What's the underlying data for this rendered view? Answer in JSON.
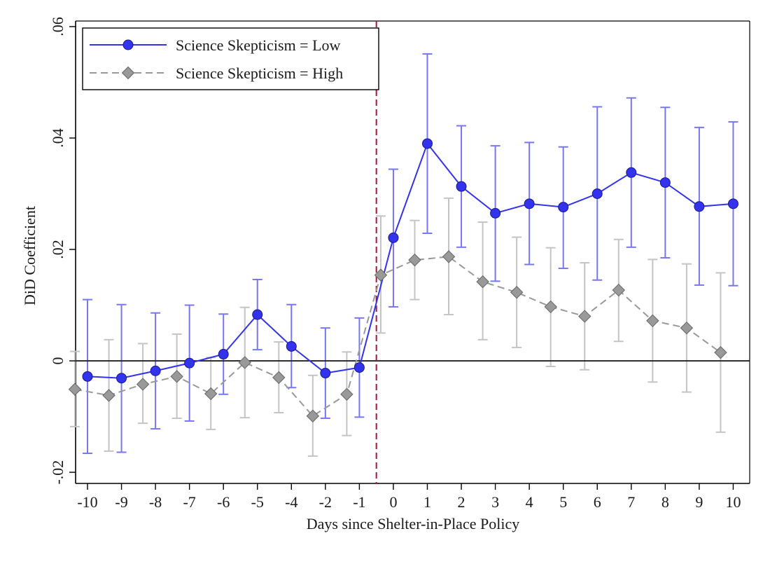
{
  "chart_data": {
    "type": "line",
    "title": "",
    "xlabel": "Days since Shelter-in-Place Policy",
    "ylabel": "DiD Coefficient",
    "x": [
      -10,
      -9,
      -8,
      -7,
      -6,
      -5,
      -4,
      -2,
      -1,
      0,
      1,
      2,
      3,
      4,
      5,
      6,
      7,
      8,
      9,
      10
    ],
    "x_tick_labels": [
      "-10",
      "-9",
      "-8",
      "-7",
      "-6",
      "-5",
      "-4",
      "-2",
      "-1",
      "0",
      "1",
      "2",
      "3",
      "4",
      "5",
      "6",
      "7",
      "8",
      "9",
      "10"
    ],
    "y_ticks": [
      -0.02,
      0,
      0.02,
      0.04,
      0.06
    ],
    "y_tick_labels": [
      "-.02",
      "0",
      ".02",
      ".04",
      ".06"
    ],
    "ylim": [
      -0.022,
      0.061
    ],
    "reference_hline": 0,
    "event_line_between": [
      "-1",
      "0"
    ],
    "grid": false,
    "legend_position": "top-left",
    "series": [
      {
        "name": "Science Skepticism = Low",
        "color": "#3333ee",
        "ci_color": "#7777f2",
        "marker": "circle",
        "line_style": "solid",
        "values": [
          -0.0028,
          -0.0031,
          -0.0018,
          -0.0004,
          0.0012,
          0.0083,
          0.0026,
          -0.0022,
          -0.0012,
          0.0221,
          0.039,
          0.0313,
          0.0265,
          0.0282,
          0.0276,
          0.03,
          0.0338,
          0.032,
          0.0277,
          0.0282
        ],
        "ci_low": [
          -0.0166,
          -0.0164,
          -0.0122,
          -0.0108,
          -0.006,
          0.002,
          -0.0048,
          -0.0103,
          -0.0101,
          0.0097,
          0.0229,
          0.0204,
          0.0143,
          0.0173,
          0.0166,
          0.0145,
          0.0204,
          0.0185,
          0.0136,
          0.0135
        ],
        "ci_high": [
          0.011,
          0.0101,
          0.0086,
          0.01,
          0.0084,
          0.0146,
          0.0101,
          0.0059,
          0.0077,
          0.0344,
          0.0551,
          0.0422,
          0.0386,
          0.0392,
          0.0384,
          0.0456,
          0.0472,
          0.0455,
          0.0419,
          0.0429
        ]
      },
      {
        "name": "Science Skepticism = High",
        "color": "#999999",
        "ci_color": "#c4c4c4",
        "marker": "diamond",
        "line_style": "dashed",
        "values": [
          -0.0051,
          -0.0062,
          -0.0042,
          -0.0028,
          -0.0059,
          -0.0003,
          -0.003,
          -0.0099,
          -0.006,
          0.0154,
          0.0181,
          0.0187,
          0.0142,
          0.0123,
          0.0097,
          0.008,
          0.0127,
          0.0072,
          0.0059,
          0.0015
        ],
        "ci_low": [
          -0.0118,
          -0.0162,
          -0.0112,
          -0.0103,
          -0.0123,
          -0.0102,
          -0.0093,
          -0.0171,
          -0.0134,
          0.005,
          0.011,
          0.0083,
          0.0038,
          0.0024,
          -0.001,
          -0.0016,
          0.0035,
          -0.0038,
          -0.0056,
          -0.0128
        ],
        "ci_high": [
          0.0017,
          0.0038,
          0.0031,
          0.0048,
          0.0006,
          0.0096,
          0.0034,
          -0.0026,
          0.0016,
          0.026,
          0.0252,
          0.0292,
          0.0249,
          0.0222,
          0.0203,
          0.0176,
          0.0218,
          0.0182,
          0.0174,
          0.0158
        ]
      }
    ]
  }
}
